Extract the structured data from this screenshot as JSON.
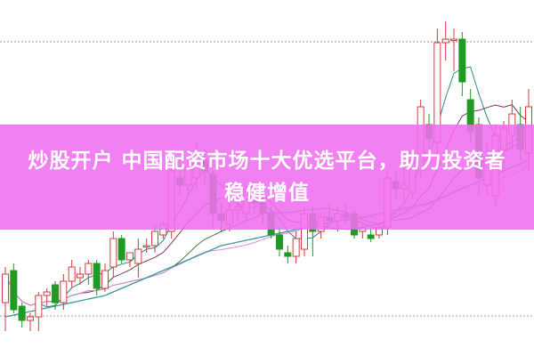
{
  "banner": {
    "title": "炒股开户 中国配资市场十大优选平台，助力投资者稳健增值"
  },
  "chart_data": {
    "type": "candlestick",
    "title": "",
    "xlabel": "",
    "ylabel": "",
    "grid": "horizontal dotted",
    "colors": {
      "up": "#d83a3a",
      "down": "#1f9a24",
      "ma5": "#2a8a8a",
      "ma10": "#7a3a6a",
      "ma20": "#3a7a3a",
      "ma30": "#e08ae0",
      "ma60": "#3a9a9a",
      "banner": "#f06ef0"
    },
    "candles": [
      [
        15,
        25,
        7,
        23
      ],
      [
        24,
        26,
        12,
        13
      ],
      [
        14,
        15,
        8,
        10
      ],
      [
        10,
        12,
        7,
        11
      ],
      [
        11,
        18,
        7,
        17
      ],
      [
        17,
        19,
        14,
        18
      ],
      [
        20,
        21,
        13,
        15
      ],
      [
        15,
        23,
        13,
        21
      ],
      [
        21,
        27,
        19,
        25
      ],
      [
        22,
        25,
        20,
        23
      ],
      [
        23,
        27,
        20,
        26
      ],
      [
        26,
        27,
        17,
        19
      ],
      [
        19,
        26,
        18,
        24
      ],
      [
        25,
        35,
        22,
        33
      ],
      [
        33,
        34,
        26,
        27
      ],
      [
        27,
        29,
        25,
        29
      ],
      [
        26,
        33,
        22,
        30
      ],
      [
        31,
        33,
        29,
        31
      ],
      [
        31,
        37,
        29,
        35
      ],
      [
        34,
        38,
        33,
        37
      ],
      [
        35,
        55,
        33,
        52
      ],
      [
        50,
        56,
        45,
        48
      ],
      [
        48,
        55,
        45,
        53
      ],
      [
        50,
        60,
        47,
        57
      ],
      [
        55,
        58,
        48,
        52
      ],
      [
        51,
        52,
        36,
        40
      ],
      [
        40,
        43,
        35,
        38
      ],
      [
        37,
        43,
        35,
        41
      ],
      [
        41,
        44,
        38,
        42
      ],
      [
        40,
        48,
        38,
        46
      ],
      [
        44,
        47,
        40,
        43
      ],
      [
        43,
        45,
        37,
        40
      ],
      [
        40,
        42,
        33,
        34
      ],
      [
        34,
        36,
        28,
        30
      ],
      [
        29,
        31,
        26,
        28
      ],
      [
        28,
        35,
        26,
        33
      ],
      [
        30,
        42,
        28,
        40
      ],
      [
        40,
        42,
        28,
        35
      ],
      [
        35,
        40,
        33,
        39
      ],
      [
        39,
        43,
        36,
        38
      ],
      [
        38,
        42,
        35,
        40
      ],
      [
        40,
        43,
        37,
        39
      ],
      [
        40,
        41,
        33,
        34
      ],
      [
        35,
        37,
        33,
        36
      ],
      [
        34,
        36,
        32,
        33
      ],
      [
        34,
        37,
        33,
        36
      ],
      [
        36,
        52,
        34,
        50
      ],
      [
        49,
        52,
        44,
        47
      ],
      [
        47,
        53,
        43,
        48
      ],
      [
        46,
        58,
        44,
        55
      ],
      [
        52,
        72,
        50,
        70
      ],
      [
        65,
        68,
        58,
        61
      ],
      [
        60,
        92,
        55,
        88
      ],
      [
        88,
        94,
        83,
        89
      ],
      [
        89,
        92,
        80,
        89
      ],
      [
        89,
        91,
        73,
        77
      ],
      [
        72,
        75,
        60,
        63
      ],
      [
        65,
        67,
        45,
        50
      ],
      [
        48,
        60,
        45,
        56
      ],
      [
        45,
        65,
        42,
        62
      ],
      [
        58,
        66,
        52,
        64
      ],
      [
        62,
        72,
        58,
        68
      ],
      [
        65,
        70,
        55,
        58
      ],
      [
        57,
        75,
        52,
        70
      ]
    ],
    "candle_format": [
      "open",
      "high",
      "low",
      "close"
    ],
    "moving_averages": [
      5,
      10,
      20,
      30
    ],
    "ma60": [
      11,
      11.5,
      12,
      12.5,
      13,
      13.5,
      14,
      14.5,
      15,
      15.5,
      16,
      16.5,
      17,
      18,
      19,
      20,
      21,
      22,
      23,
      24,
      25,
      26,
      27,
      28,
      29,
      30,
      31,
      31.5,
      32,
      32.5,
      33,
      33.5,
      34,
      34.5,
      35,
      35.5,
      36,
      36.5,
      37,
      37.5,
      38,
      38.5,
      39,
      39,
      39.5,
      40,
      40.5,
      41,
      41.5,
      42,
      42.5,
      43,
      44,
      45,
      46,
      47,
      48,
      49,
      50,
      51,
      52,
      53,
      54,
      55
    ]
  }
}
